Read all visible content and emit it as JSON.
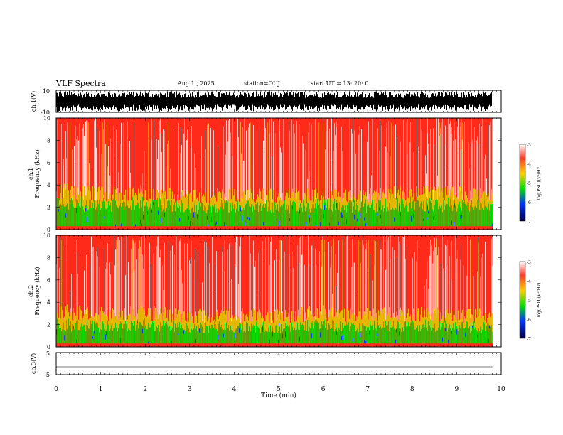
{
  "header": {
    "title": "VLF Spectra",
    "date": "Aug.1  , 2025",
    "station": "station=OUJ",
    "start_ut": "start  UT  =   13: 20: 0"
  },
  "colors": {
    "red": "#ff2a1a",
    "pink": "#ffd8d8",
    "yellow": "#e0d000",
    "green": "#00e000",
    "blue": "#0040ff",
    "navy": "#000060",
    "trace": "#000000"
  },
  "chart_data": [
    {
      "type": "line",
      "id": "ch1-waveform",
      "ylabel": "ch.1(V)",
      "ylim": [
        -10,
        10
      ],
      "ytick_labels": [
        "10",
        "-10"
      ],
      "x": [
        0,
        0.5,
        1,
        1.5,
        2,
        2.5,
        3,
        3.5,
        4,
        4.5,
        5,
        5.5,
        6,
        6.5,
        7,
        7.5,
        8,
        8.5,
        9,
        9.5,
        9.8
      ],
      "envelope_max": [
        10,
        9,
        8.5,
        9,
        8.8,
        9,
        9.2,
        9,
        8.5,
        9,
        9,
        8.8,
        9,
        9.2,
        9,
        8.8,
        9,
        9,
        8.7,
        9,
        9
      ],
      "envelope_min": [
        -10,
        -9,
        -8.5,
        -9,
        -9,
        -9.2,
        -9,
        -8.8,
        -9,
        -9,
        -8.5,
        -9,
        -9,
        -9,
        -8.8,
        -9,
        -9,
        -8.6,
        -9,
        -9,
        -9
      ],
      "xlim": [
        0,
        10
      ]
    },
    {
      "type": "heatmap",
      "id": "ch1-spectrogram",
      "ylabel": "ch.1\nFrequency (kHz)",
      "ylim": [
        0,
        10
      ],
      "yticks": [
        0,
        2,
        4,
        6,
        8,
        10
      ],
      "ytick_labels": [
        "0",
        "2",
        "4",
        "6",
        "8",
        "10"
      ],
      "xlim": [
        0,
        10
      ],
      "data_end_min": 9.8,
      "colorbar": {
        "label": "log(PSD)(V²/Hz)",
        "range": [
          -7,
          -3
        ],
        "tick_labels": [
          "-3",
          "-4",
          "-5",
          "-6",
          "-7"
        ]
      },
      "time_min": [
        0,
        1,
        2,
        3,
        4,
        5,
        6,
        7,
        8,
        9,
        9.8
      ],
      "green_band_top_khz": [
        2.4,
        2.2,
        2.3,
        2.0,
        2.1,
        2.0,
        2.2,
        2.1,
        2.3,
        2.2,
        2.0
      ],
      "yellow_band_top_khz": [
        3.2,
        3.0,
        3.1,
        2.8,
        2.9,
        2.8,
        3.0,
        2.9,
        3.1,
        3.0,
        2.8
      ],
      "background_log_psd": -3.3
    },
    {
      "type": "heatmap",
      "id": "ch2-spectrogram",
      "ylabel": "ch.2\nFrequency (kHz)",
      "ylim": [
        0,
        10
      ],
      "yticks": [
        0,
        2,
        4,
        6,
        8,
        10
      ],
      "ytick_labels": [
        "0",
        "2",
        "4",
        "6",
        "8",
        "10"
      ],
      "xlim": [
        0,
        10
      ],
      "data_end_min": 9.8,
      "colorbar": {
        "label": "log(PSD)(V²/Hz)",
        "range": [
          -7,
          -3
        ],
        "tick_labels": [
          "-3",
          "-4",
          "-5",
          "-6",
          "-7"
        ]
      },
      "time_min": [
        0,
        1,
        2,
        3,
        4,
        5,
        6,
        7,
        8,
        9,
        9.8
      ],
      "green_band_top_khz": [
        2.0,
        1.8,
        2.0,
        1.7,
        1.8,
        1.7,
        2.0,
        1.8,
        1.9,
        1.8,
        1.7
      ],
      "yellow_band_top_khz": [
        3.0,
        2.8,
        2.9,
        2.6,
        2.7,
        2.6,
        2.9,
        2.7,
        2.8,
        2.7,
        2.6
      ],
      "background_log_psd": -3.3
    },
    {
      "type": "line",
      "id": "ch3-trace",
      "ylabel": "ch.3(V)",
      "ylim": [
        -5,
        5
      ],
      "ytick_labels": [
        "5",
        "-5"
      ],
      "x": [
        0,
        9.8
      ],
      "y": [
        -1.6,
        -1.6
      ],
      "xlim": [
        0,
        10
      ],
      "xlabel": "Time (min)",
      "xticks": [
        0,
        1,
        2,
        3,
        4,
        5,
        6,
        7,
        8,
        9,
        10
      ],
      "xtick_labels": [
        "0",
        "1",
        "2",
        "3",
        "4",
        "5",
        "6",
        "7",
        "8",
        "9",
        "10"
      ]
    }
  ]
}
